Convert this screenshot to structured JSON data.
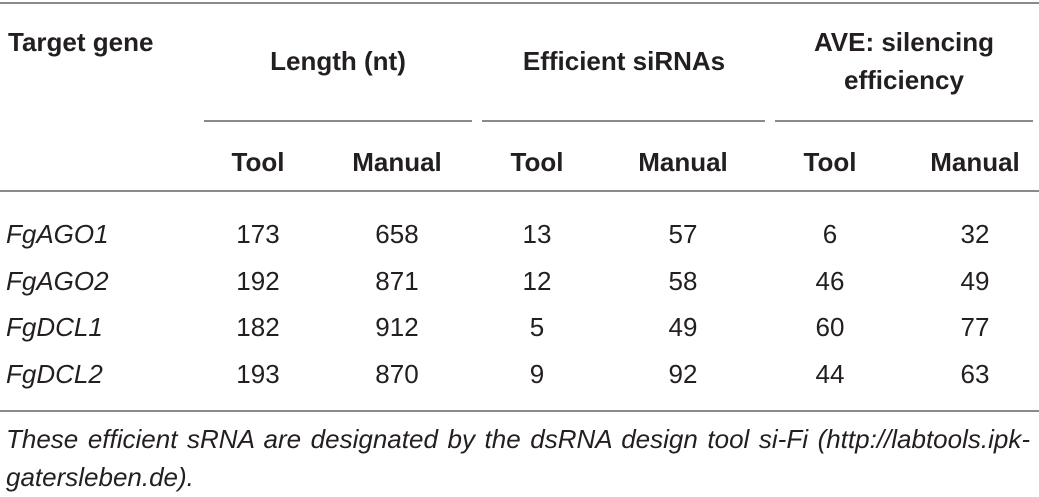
{
  "table": {
    "header": {
      "first": "Target gene",
      "groups": [
        {
          "label": "Length (nt)",
          "columns": [
            "Tool",
            "Manual"
          ]
        },
        {
          "label": "Efficient siRNAs",
          "columns": [
            "Tool",
            "Manual"
          ]
        },
        {
          "label": "AVE: silencing efficiency",
          "columns": [
            "Tool",
            "Manual"
          ]
        }
      ]
    },
    "rows": [
      [
        "FgAGO1",
        173,
        658,
        13,
        57,
        6,
        32
      ],
      [
        "FgAGO2",
        192,
        871,
        12,
        58,
        46,
        49
      ],
      [
        "FgDCL1",
        182,
        912,
        5,
        49,
        60,
        77
      ],
      [
        "FgDCL2",
        193,
        870,
        9,
        92,
        44,
        63
      ]
    ],
    "footnote": "These efficient sRNA are designated by the dsRNA design tool si-Fi (http://labtools.ipk-gatersleben.de)."
  }
}
